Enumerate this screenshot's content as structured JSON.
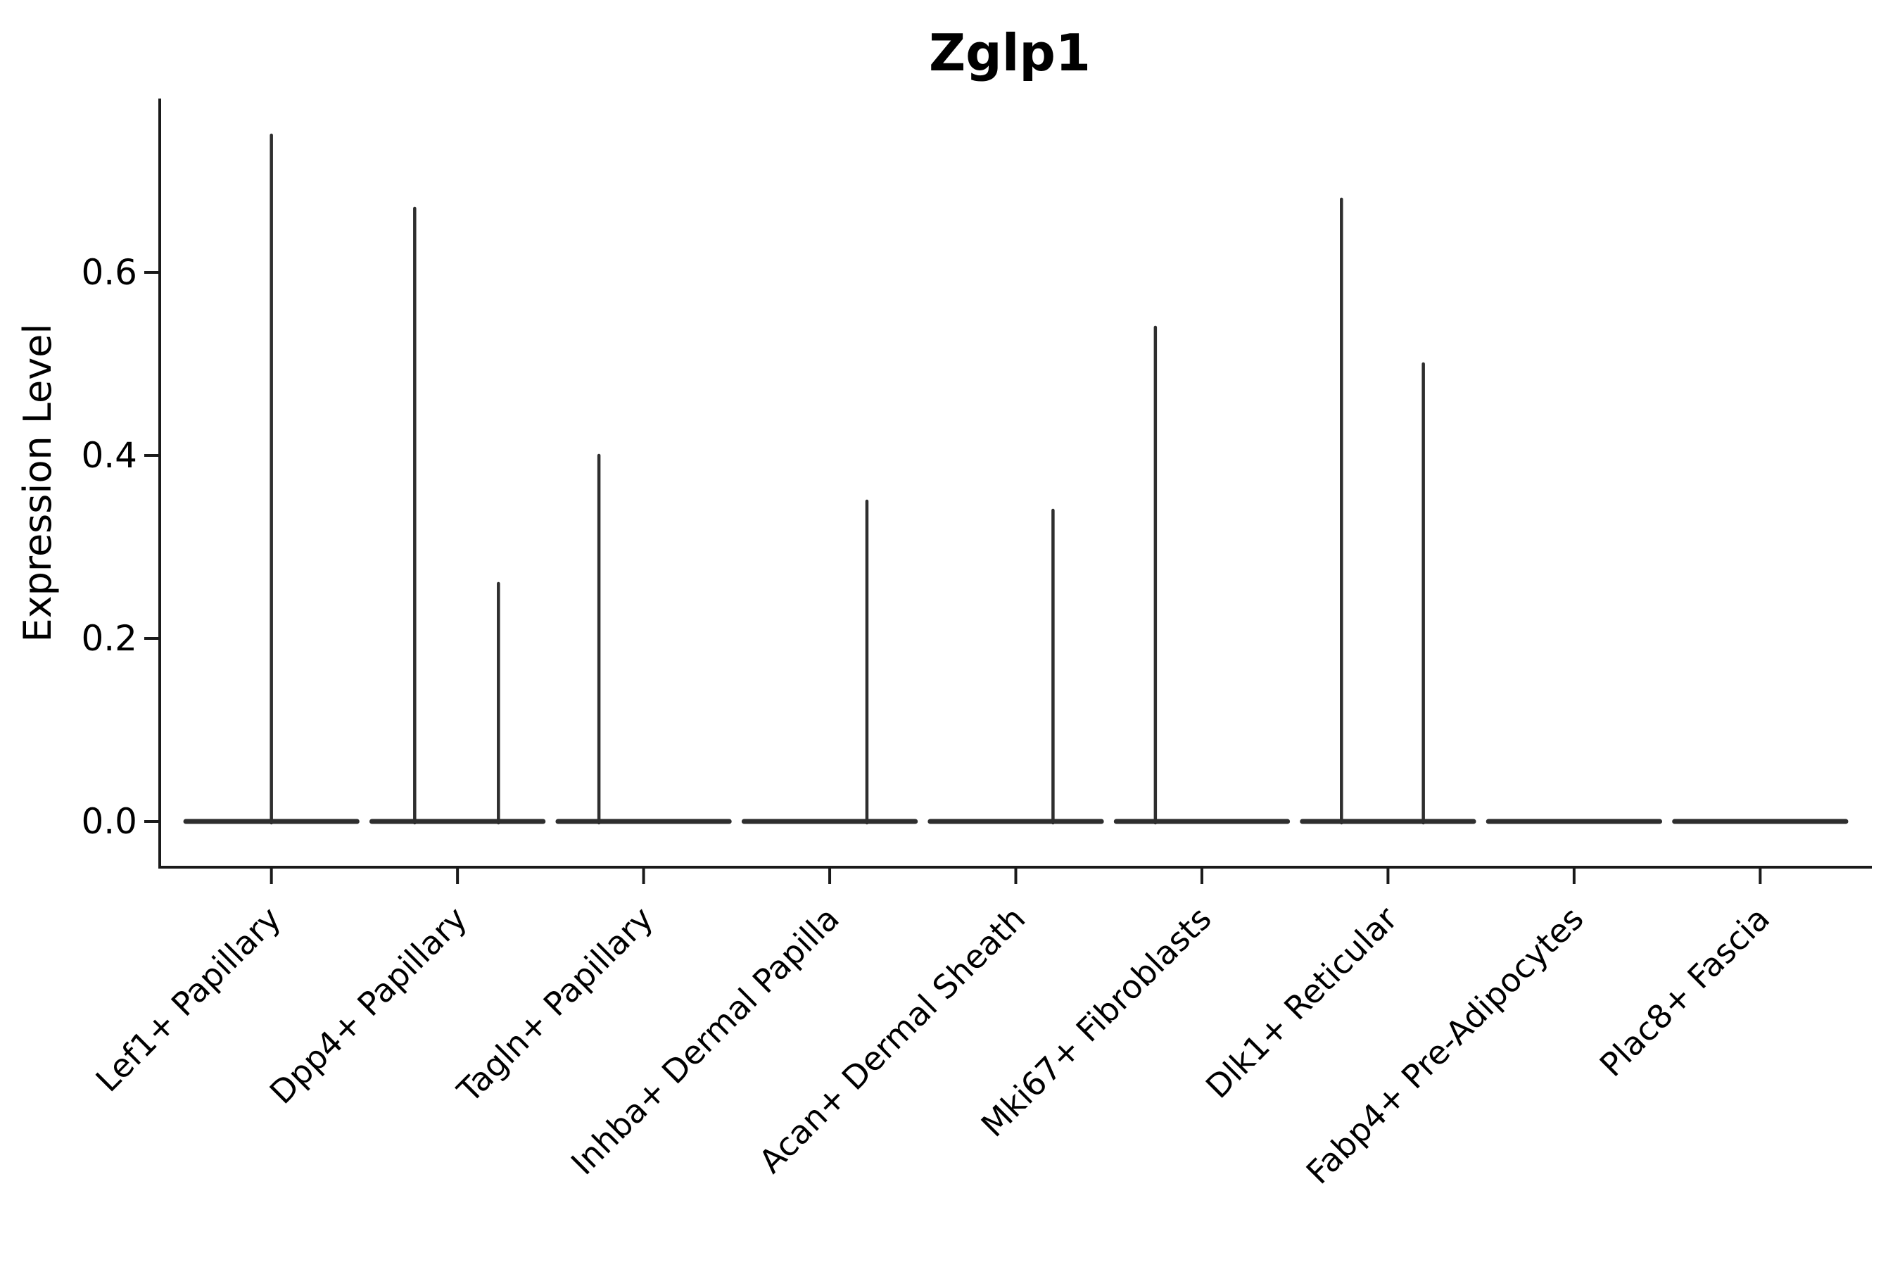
{
  "title": "Zglp1",
  "ylabel": "Expression Level",
  "colors": {
    "background": "#ffffff",
    "axis": "#1a1a1a",
    "text": "#000000",
    "violin": "#2e2e2e"
  },
  "chart_data": {
    "type": "violin",
    "title": "Zglp1",
    "xlabel": "",
    "ylabel": "Expression Level",
    "ylim": [
      -0.05,
      0.79
    ],
    "yticks": [
      0.0,
      0.2,
      0.4,
      0.6
    ],
    "ytick_labels": [
      "0.0",
      "0.2",
      "0.4",
      "0.6"
    ],
    "grid": false,
    "legend": null,
    "categories": [
      "Lef1+ Papillary",
      "Dpp4+ Papillary",
      "Tagln+ Papillary",
      "Inhba+ Dermal Papilla",
      "Acan+ Dermal Sheath",
      "Mki67+ Fibroblasts",
      "Dlk1+ Reticular",
      "Fabp4+ Pre-Adipocytes",
      "Plac8+ Fascia"
    ],
    "violins": [
      {
        "category": "Lef1+ Papillary",
        "base_halfwidth_frac": 0.46,
        "spikes": [
          {
            "offset_frac": 0.0,
            "max_expression": 0.75
          }
        ]
      },
      {
        "category": "Dpp4+ Papillary",
        "base_halfwidth_frac": 0.46,
        "spikes": [
          {
            "offset_frac": -0.23,
            "max_expression": 0.67
          },
          {
            "offset_frac": 0.22,
            "max_expression": 0.26
          }
        ]
      },
      {
        "category": "Tagln+ Papillary",
        "base_halfwidth_frac": 0.46,
        "spikes": [
          {
            "offset_frac": -0.24,
            "max_expression": 0.4
          }
        ]
      },
      {
        "category": "Inhba+ Dermal Papilla",
        "base_halfwidth_frac": 0.46,
        "spikes": [
          {
            "offset_frac": 0.2,
            "max_expression": 0.35
          }
        ]
      },
      {
        "category": "Acan+ Dermal Sheath",
        "base_halfwidth_frac": 0.46,
        "spikes": [
          {
            "offset_frac": 0.2,
            "max_expression": 0.34
          }
        ]
      },
      {
        "category": "Mki67+ Fibroblasts",
        "base_halfwidth_frac": 0.46,
        "spikes": [
          {
            "offset_frac": -0.25,
            "max_expression": 0.54
          }
        ]
      },
      {
        "category": "Dlk1+ Reticular",
        "base_halfwidth_frac": 0.46,
        "spikes": [
          {
            "offset_frac": -0.25,
            "max_expression": 0.68
          },
          {
            "offset_frac": 0.19,
            "max_expression": 0.5
          }
        ]
      },
      {
        "category": "Fabp4+ Pre-Adipocytes",
        "base_halfwidth_frac": 0.46,
        "spikes": []
      },
      {
        "category": "Plac8+ Fascia",
        "base_halfwidth_frac": 0.46,
        "spikes": []
      }
    ]
  }
}
